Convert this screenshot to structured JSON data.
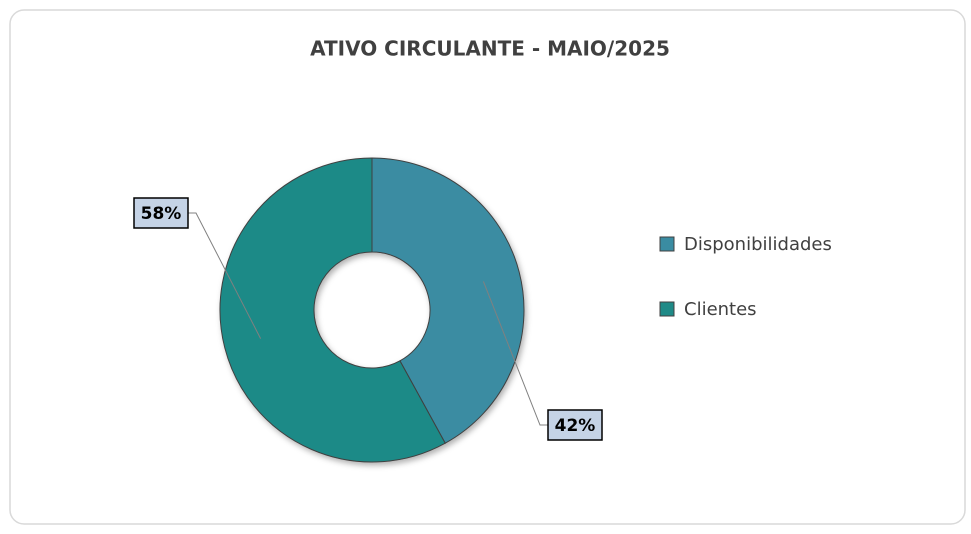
{
  "chart_data": {
    "type": "donut",
    "title": "ATIVO CIRCULANTE  - MAIO/2025",
    "categories": [
      "Disponibilidades",
      "Clientes"
    ],
    "values": [
      42,
      58
    ],
    "value_labels": [
      "42%",
      "58%"
    ],
    "colors": [
      "#3a8ca2",
      "#1f8a87"
    ],
    "legend": "right"
  }
}
